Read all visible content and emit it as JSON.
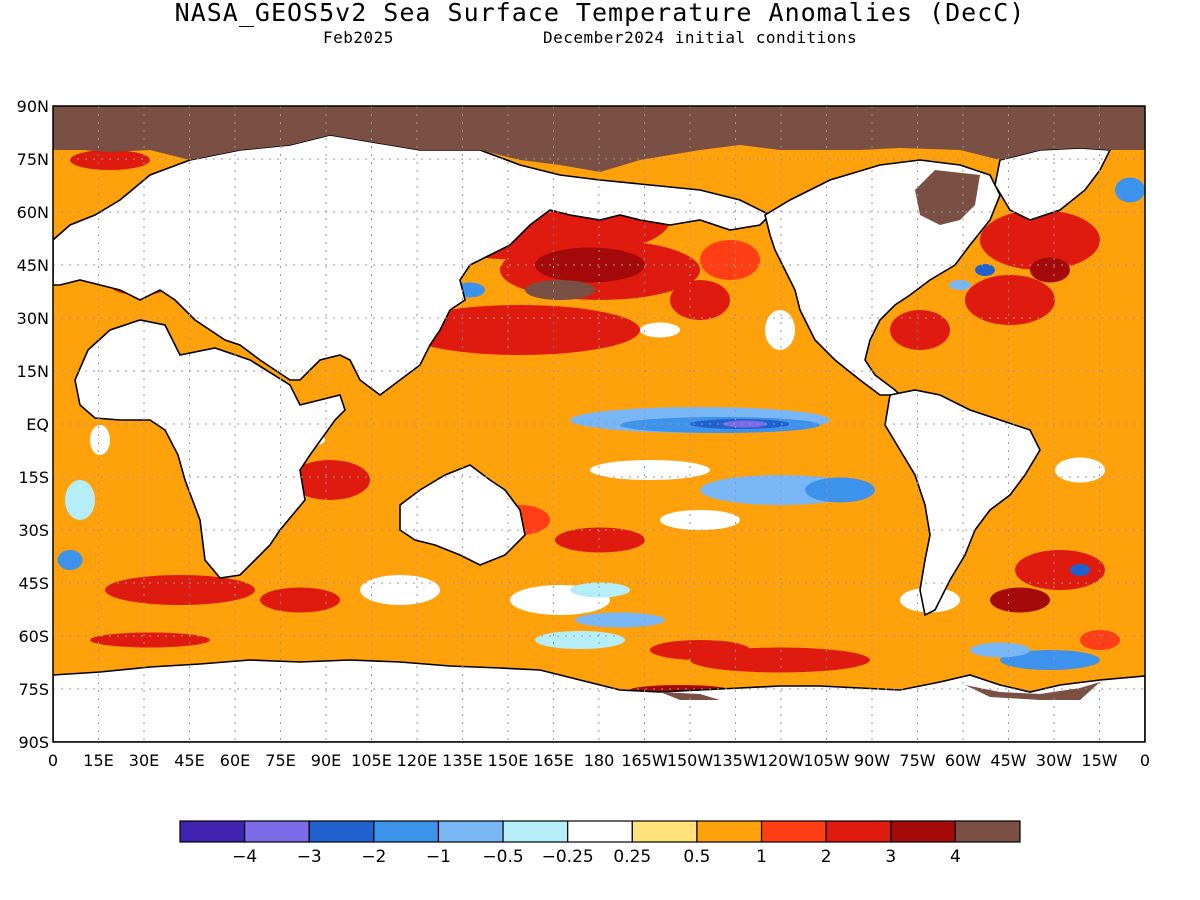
{
  "header": {
    "title": "NASA_GEOS5v2 Sea Surface Temperature Anomalies (DecC)",
    "month": "Feb2025",
    "init": "December2024 initial conditions"
  },
  "axes": {
    "lat_labels": [
      "90N",
      "75N",
      "60N",
      "45N",
      "30N",
      "15N",
      "EQ",
      "15S",
      "30S",
      "45S",
      "60S",
      "75S",
      "90S"
    ],
    "lon_labels": [
      "0",
      "15E",
      "30E",
      "45E",
      "60E",
      "75E",
      "90E",
      "105E",
      "120E",
      "135E",
      "150E",
      "165E",
      "180",
      "165W",
      "150W",
      "135W",
      "120W",
      "105W",
      "90W",
      "75W",
      "60W",
      "45W",
      "30W",
      "15W",
      "0"
    ]
  },
  "colorbar": {
    "colors": [
      "#3f22b0",
      "#7d6ae9",
      "#1f62cf",
      "#3d92ec",
      "#79b6f5",
      "#b5eef9",
      "#ffffff",
      "#ffe27a",
      "#ffa10b",
      "#ff3e15",
      "#df1a0e",
      "#a50a0b",
      "#7b5044"
    ],
    "labels": [
      "−4",
      "−3",
      "−2",
      "−1",
      "−0.5",
      "−0.25",
      "0.25",
      "0.5",
      "1",
      "2",
      "3",
      "4"
    ]
  },
  "map": {
    "land_color": "#ffffff",
    "ice_color": "#7b5044"
  }
}
